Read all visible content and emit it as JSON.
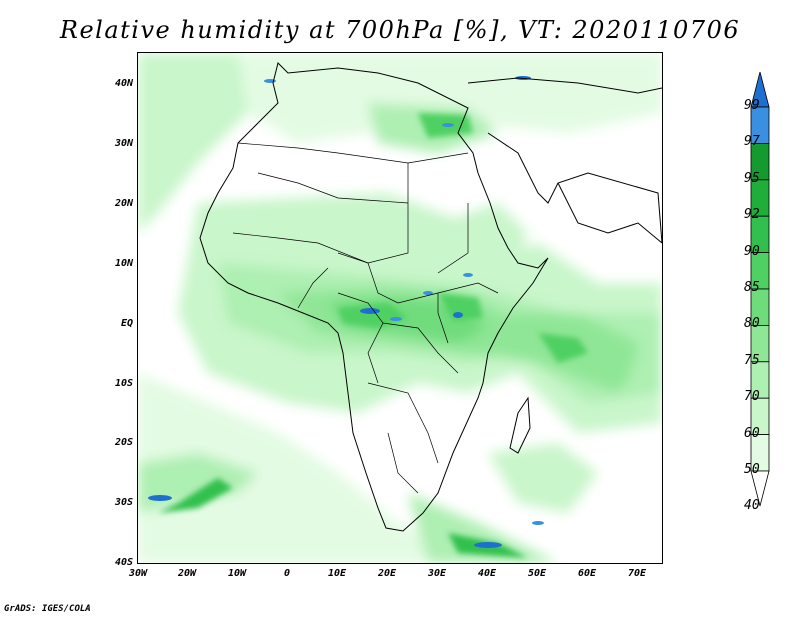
{
  "title": "Relative humidity at 700hPa [%], VT: 2020110706",
  "credit": "GrADS: IGES/COLA",
  "map": {
    "lat_labels": [
      "40N",
      "30N",
      "20N",
      "10N",
      "EQ",
      "10S",
      "20S",
      "30S",
      "40S"
    ],
    "lon_labels": [
      "30W",
      "20W",
      "10W",
      "0",
      "10E",
      "20E",
      "30E",
      "40E",
      "50E",
      "60E",
      "70E"
    ],
    "lat_range": [
      -40,
      45
    ],
    "lon_range": [
      -30,
      75
    ]
  },
  "colorbar": {
    "levels": [
      "99",
      "97",
      "95",
      "92",
      "90",
      "85",
      "80",
      "75",
      "70",
      "60",
      "50",
      "40"
    ],
    "colors": [
      "#1e6fd0",
      "#3b8fe0",
      "#159a2f",
      "#1fae3a",
      "#31c04d",
      "#4fd062",
      "#6fdc7b",
      "#8fe696",
      "#aeefb2",
      "#c9f6cb",
      "#e3fbe3",
      "#ffffff"
    ]
  }
}
